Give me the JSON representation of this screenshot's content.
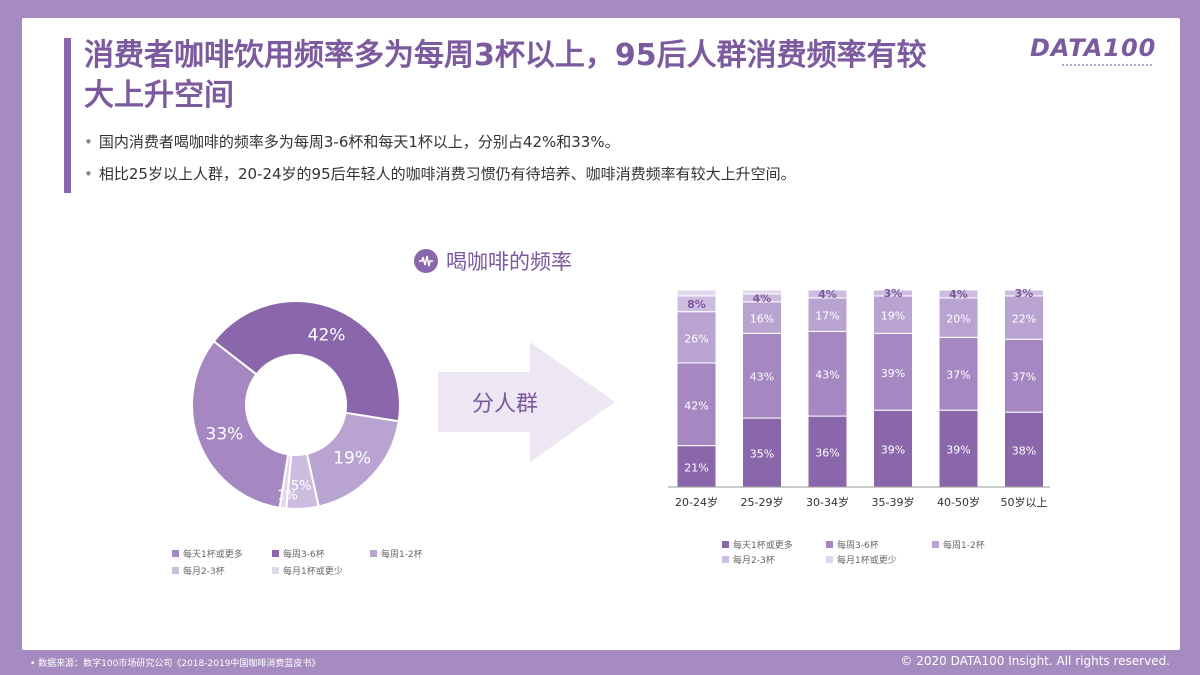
{
  "header": {
    "title_line1": "消费者咖啡饮用频率多为每周3杯以上，95后人群消费频率有较",
    "title_line2": "大上升空间",
    "logo": "DATA100"
  },
  "bullets": [
    "国内消费者喝咖啡的频率多为每周3-6杯和每天1杯以上，分别占42%和33%。",
    "相比25岁以上人群，20-24岁的95后年轻人的咖啡消费习惯仍有待培养、咖啡消费频率有较大上升空间。"
  ],
  "chart_heading": "喝咖啡的频率",
  "arrow_label": "分人群",
  "colors": {
    "brand": "#7b5a9e",
    "s1": "#8a67ab",
    "s2": "#a588c2",
    "s3": "#b9a3d1",
    "s4": "#ccbde0",
    "s5": "#e1d7ec"
  },
  "chart_data": [
    {
      "type": "pie",
      "title": "",
      "labels": [
        "每天1杯或更多",
        "每周3-6杯",
        "每周1-2杯",
        "每月2-3杯",
        "每月1杯或更少"
      ],
      "values": [
        33,
        42,
        19,
        5,
        1
      ],
      "value_labels": [
        "33%",
        "42%",
        "19%",
        "5%",
        "1%"
      ],
      "legend": [
        "每天1杯或更多",
        "每周3-6杯",
        "每周1-2杯",
        "每月2-3杯",
        "每月1杯或更少"
      ],
      "legend_position": "bottom"
    },
    {
      "type": "bar",
      "stacked": true,
      "categories": [
        "20-24岁",
        "25-29岁",
        "30-34岁",
        "35-39岁",
        "40-50岁",
        "50岁以上"
      ],
      "series": [
        {
          "name": "每天1杯或更多",
          "values": [
            21,
            35,
            36,
            39,
            39,
            38
          ]
        },
        {
          "name": "每周3-6杯",
          "values": [
            42,
            43,
            43,
            39,
            37,
            37
          ]
        },
        {
          "name": "每周1-2杯",
          "values": [
            26,
            16,
            17,
            19,
            20,
            22
          ]
        },
        {
          "name": "每月2-3杯",
          "values": [
            8,
            4,
            4,
            3,
            4,
            3
          ]
        },
        {
          "name": "每月1杯或更少",
          "values": [
            3,
            2,
            0,
            0,
            0,
            0
          ]
        }
      ],
      "data_labels_shown": [
        "每天1杯或更多",
        "每周3-6杯",
        "每周1-2杯",
        "每月2-3杯"
      ],
      "legend_position": "bottom"
    }
  ],
  "footer": {
    "source": "• 数据来源：数字100市场研究公司《2018-2019中国咖啡消费蓝皮书》",
    "copyright": "© 2020 DATA100 Insight. All rights reserved."
  }
}
